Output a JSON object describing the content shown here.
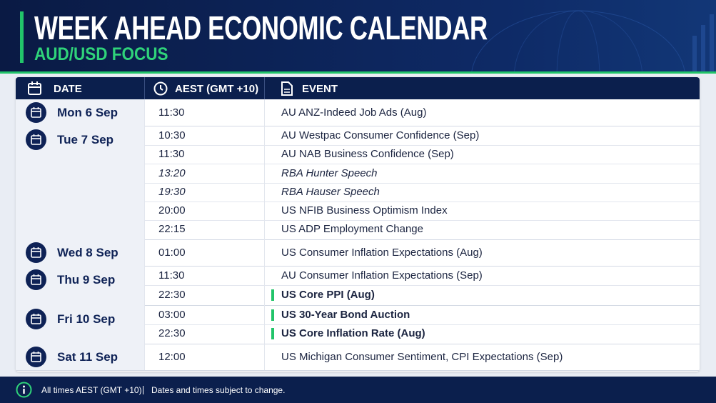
{
  "header": {
    "title": "WEEK AHEAD ECONOMIC CALENDAR",
    "subtitle": "AUD/USD FOCUS"
  },
  "table": {
    "columns": [
      "DATE",
      "AEST (GMT +10)",
      "EVENT"
    ],
    "days": [
      {
        "date": "Mon 6 Sep",
        "events": [
          {
            "time": "11:30",
            "event": "AU ANZ-Indeed Job Ads (Aug)"
          }
        ]
      },
      {
        "date": "Tue 7 Sep",
        "events": [
          {
            "time": "10:30",
            "event": "AU Westpac Consumer Confidence (Sep)"
          },
          {
            "time": "11:30",
            "event": "AU NAB Business Confidence (Sep)"
          },
          {
            "time": "13:20",
            "event": "RBA Hunter Speech",
            "italic": true
          },
          {
            "time": "19:30",
            "event": "RBA Hauser Speech",
            "italic": true
          },
          {
            "time": "20:00",
            "event": "US NFIB Business Optimism Index"
          },
          {
            "time": "22:15",
            "event": "US ADP Employment Change"
          }
        ]
      },
      {
        "date": "Wed 8 Sep",
        "events": [
          {
            "time": "01:00",
            "event": "US Consumer Inflation Expectations (Aug)"
          }
        ]
      },
      {
        "date": "Thu 9 Sep",
        "events": [
          {
            "time": "11:30",
            "event": "AU Consumer Inflation Expectations (Sep)"
          },
          {
            "time": "22:30",
            "event": "US Core PPI (Aug)",
            "highlight": true
          }
        ]
      },
      {
        "date": "Fri 10 Sep",
        "events": [
          {
            "time": "03:00",
            "event": "US 30-Year Bond Auction",
            "highlight": true
          },
          {
            "time": "22:30",
            "event": "US Core Inflation Rate (Aug)",
            "highlight": true
          }
        ]
      },
      {
        "date": "Sat 11 Sep",
        "events": [
          {
            "time": "12:00",
            "event": "US Michigan Consumer Sentiment, CPI Expectations (Sep)"
          }
        ]
      }
    ]
  },
  "footer": {
    "note": "All times AEST (GMT +10)",
    "disclaimer": "Dates and times subject to change."
  }
}
